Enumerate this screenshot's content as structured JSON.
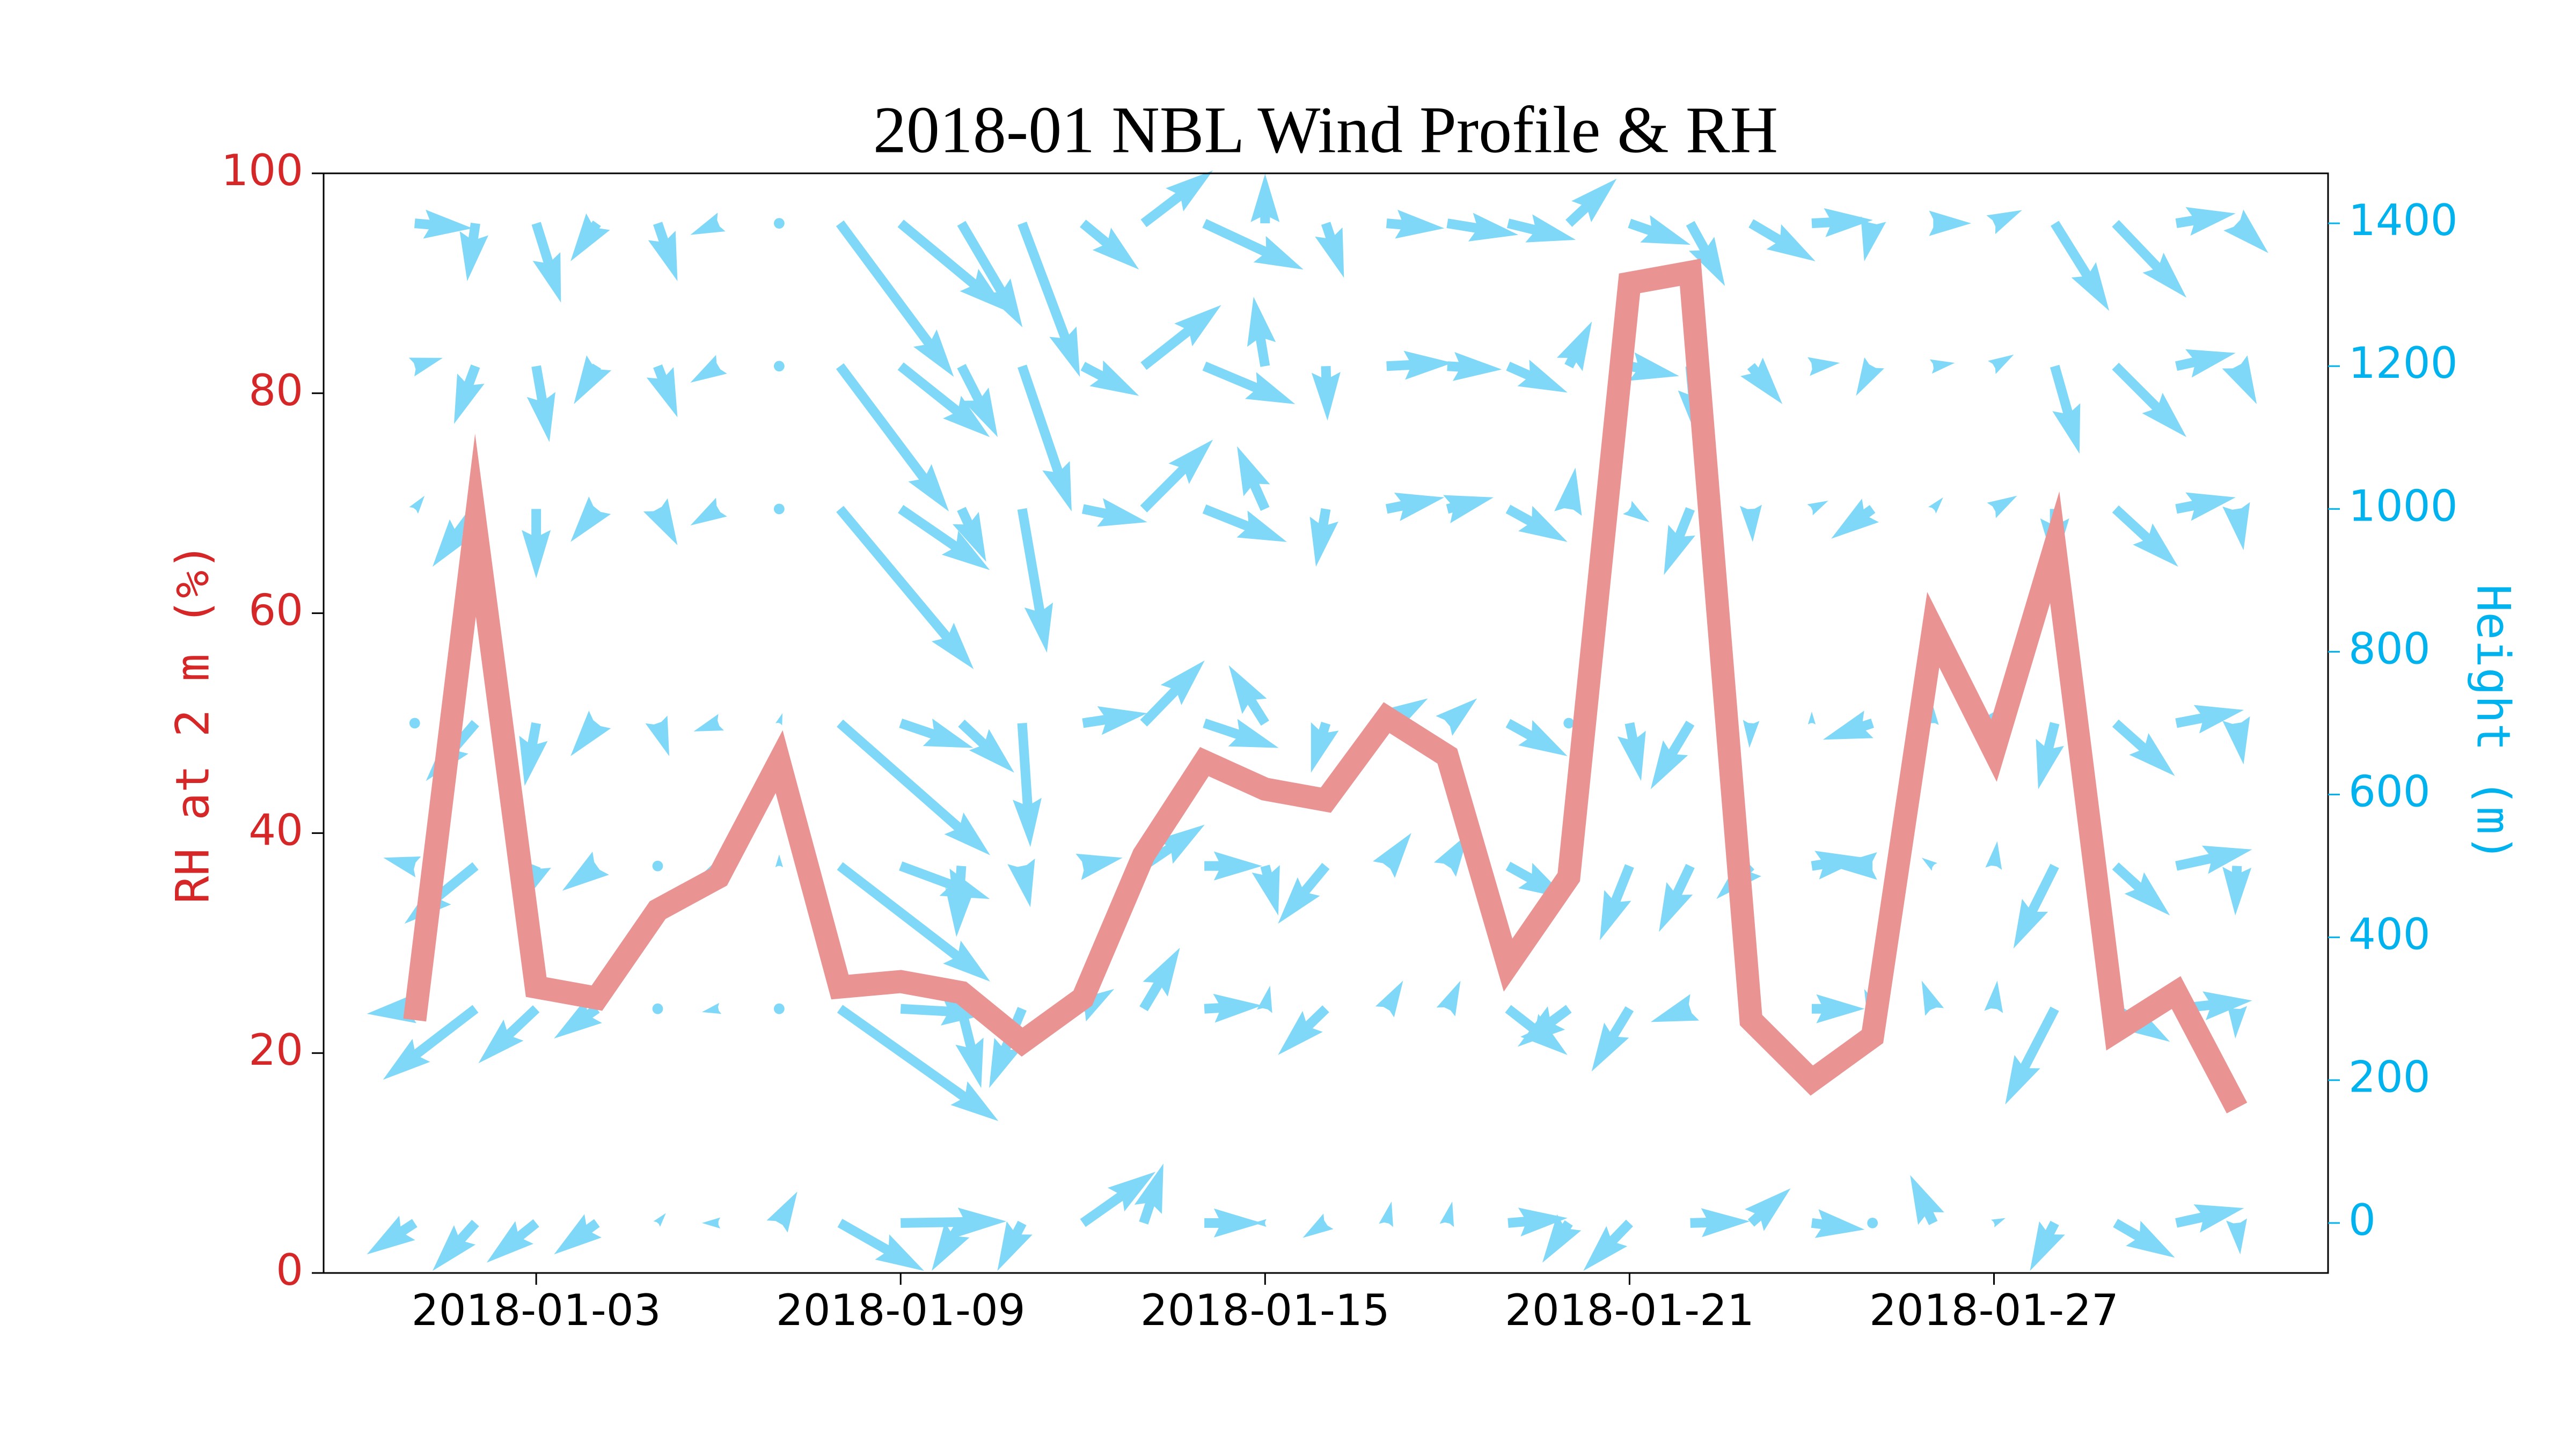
{
  "chart_data": {
    "type": "line",
    "title": "2018-01 NBL Wind Profile & RH",
    "ylabel": "RH at 2 m (%)",
    "y2label": "Height (m)",
    "x": [
      "2018-01-01",
      "2018-01-02",
      "2018-01-03",
      "2018-01-04",
      "2018-01-05",
      "2018-01-06",
      "2018-01-07",
      "2018-01-08",
      "2018-01-09",
      "2018-01-10",
      "2018-01-11",
      "2018-01-12",
      "2018-01-13",
      "2018-01-14",
      "2018-01-15",
      "2018-01-16",
      "2018-01-17",
      "2018-01-18",
      "2018-01-19",
      "2018-01-20",
      "2018-01-21",
      "2018-01-22",
      "2018-01-23",
      "2018-01-24",
      "2018-01-25",
      "2018-01-26",
      "2018-01-27",
      "2018-01-28",
      "2018-01-29",
      "2018-01-30",
      "2018-01-31"
    ],
    "xlim": [
      "2017-12-30T12:00:00Z",
      "2018-02-01T12:00:00Z"
    ],
    "xticks": [
      "2018-01-03",
      "2018-01-09",
      "2018-01-15",
      "2018-01-21",
      "2018-01-27"
    ],
    "ylim": [
      0,
      100
    ],
    "yticks": [
      0,
      20,
      40,
      60,
      80,
      100
    ],
    "y2lim": [
      -70,
      1470
    ],
    "y2ticks": [
      0,
      200,
      400,
      600,
      800,
      1000,
      1200,
      1400
    ],
    "y_axis_color": "#d62728",
    "y2_axis_color": "#00b2ee",
    "series": [
      {
        "color": "#ea9393",
        "values": [
          23,
          68,
          26,
          25,
          33,
          36,
          46.5,
          26,
          26.5,
          25.5,
          21,
          25,
          38,
          46.5,
          44,
          43,
          50.5,
          47,
          28,
          36,
          90,
          91,
          23,
          17.5,
          21.5,
          58.5,
          47.5,
          66,
          22,
          25.5,
          15
        ]
      }
    ],
    "wind": {
      "type": "quiver",
      "axis": "y2",
      "color": "#80d8f8",
      "heights": [
        0,
        300,
        500,
        700,
        1000,
        1200,
        1400
      ],
      "u": [
        [
          -2.9,
          -2.6,
          -3,
          -2.6,
          0.5,
          -1,
          1.1,
          5.1,
          6.4,
          -1.8,
          -1.5,
          4.4,
          1.2,
          3.5,
          -0.7,
          -1.4,
          0.3,
          0.3,
          3.6,
          -1.6,
          -2.8,
          3.6,
          2.4,
          3.2,
          -0.5,
          -1.4,
          0.7,
          -1.5,
          3.6,
          4.1,
          0.2
        ],
        [
          -2.9,
          -5.6,
          -3.5,
          -2.6,
          0.2,
          -1,
          -0.2,
          9.6,
          5.4,
          1.2,
          -2,
          1.9,
          2.2,
          3.5,
          0.3,
          -2.9,
          1,
          0.8,
          3.6,
          -3.1,
          -2.3,
          -2.4,
          0.4,
          3.2,
          -0.5,
          -0.7,
          0.2,
          -3,
          3.3,
          4.6,
          -0.1
        ],
        [
          -1.9,
          -4.3,
          -1,
          -2.1,
          0.2,
          -1,
          0,
          9.1,
          5.4,
          -0.3,
          0.5,
          2.4,
          3.7,
          3.5,
          0.8,
          -2.9,
          1.5,
          1.3,
          3.6,
          -0.3,
          -1.8,
          -1.9,
          -2.1,
          3.2,
          -2.5,
          -0.7,
          0.2,
          -2.5,
          3.3,
          4.6,
          -0.1
        ],
        [
          -0.3,
          -3,
          -0.7,
          -1.6,
          0.7,
          -1.5,
          0.2,
          9.1,
          4.4,
          3.2,
          0.5,
          3.9,
          3.7,
          4.5,
          -2.2,
          -0.9,
          2.5,
          1.8,
          3.6,
          -0.1,
          0.7,
          -2.4,
          -0.1,
          0,
          -3,
          0,
          1.4,
          -1,
          3.6,
          4.1,
          0.4
        ],
        [
          0.6,
          -2.6,
          0,
          -1.6,
          1.2,
          -1.7,
          0,
          8.1,
          5.4,
          1.5,
          1.5,
          3.9,
          4.2,
          5,
          -1.7,
          -0.6,
          3.5,
          2.8,
          3.6,
          0.4,
          1.2,
          -1.6,
          0.1,
          1,
          -2.5,
          0.6,
          1.4,
          0,
          3.8,
          3.6,
          0.4
        ],
        [
          1.7,
          -1.3,
          0.8,
          -1.4,
          1.2,
          -1.7,
          0,
          6.6,
          5.4,
          2.2,
          3,
          3.4,
          4.7,
          5.5,
          -0.7,
          0.1,
          4,
          3.3,
          3.6,
          1.4,
          3,
          0.4,
          1.9,
          1.7,
          -1,
          1.3,
          1.2,
          1.5,
          4.3,
          3.6,
          1.2
        ],
        [
          3.5,
          -0.5,
          1.5,
          -1.6,
          1.2,
          -1.7,
          0,
          6.9,
          6.4,
          3.7,
          3.5,
          3.4,
          4.2,
          6,
          0,
          1.1,
          3.5,
          4.3,
          4.1,
          2.9,
          3.7,
          2.1,
          3.9,
          3.7,
          -0.5,
          2.3,
          1.7,
          3.3,
          4.3,
          3.6,
          1.9
        ]
      ],
      "v": [
        [
          -1.9,
          -2.9,
          -2.4,
          -1.9,
          0.6,
          0,
          1.9,
          -2.9,
          0.1,
          -2.9,
          -2.9,
          3.1,
          3.6,
          0,
          0,
          -0.9,
          1.3,
          1.3,
          0.3,
          -2.4,
          -2.9,
          0.1,
          2.1,
          -0.4,
          0,
          2.9,
          0.3,
          -2.9,
          -2.1,
          0.9,
          -1.9
        ],
        [
          -0.3,
          -4.3,
          -3.3,
          -1.8,
          0.2,
          -0.2,
          0,
          -6.8,
          -0.3,
          -4.8,
          -4.8,
          1.2,
          3.7,
          0.2,
          1.4,
          -2.8,
          1.7,
          1.7,
          -2.8,
          -2.3,
          -3.8,
          -0.8,
          -1.3,
          0,
          1.2,
          1.7,
          1.7,
          -5.8,
          -2,
          0.5,
          -1.8
        ],
        [
          0.5,
          -3.5,
          -2.5,
          -1.5,
          -0.3,
          -0.5,
          0.7,
          -7,
          -2,
          -4.3,
          -2.5,
          0.5,
          2.5,
          0,
          -3,
          -3.5,
          2,
          2,
          -2,
          0.5,
          -4.5,
          -4,
          -2,
          0.5,
          0,
          0.5,
          1.5,
          -5,
          -3,
          1,
          -3
        ],
        [
          0.3,
          -3.5,
          -3.8,
          -2,
          -2,
          -0.5,
          0.6,
          -8,
          -1.5,
          -3,
          -7.5,
          0.6,
          3.8,
          -1.5,
          3.5,
          -3,
          1.5,
          1.5,
          -2,
          0.5,
          -3.5,
          -4,
          -1.5,
          0.7,
          -1,
          1,
          1.5,
          -4,
          -3.2,
          0.8,
          -2.5
        ],
        [
          0.8,
          -3.5,
          -4.2,
          -2,
          -2.2,
          -1,
          0,
          -9.7,
          -3.7,
          -3.2,
          -8.7,
          -0.8,
          4.2,
          -2,
          3.8,
          -3.5,
          0.7,
          0.7,
          -2,
          2.5,
          -0.8,
          -4,
          -2,
          0.5,
          -1.8,
          0.7,
          0.8,
          -3.5,
          -3.5,
          0.7,
          -2.5
        ],
        [
          0.5,
          -3.5,
          -4.6,
          -2.3,
          -3.1,
          -1,
          0,
          -8.8,
          -4.3,
          -4.3,
          -8.8,
          -1.8,
          3.7,
          -2.3,
          4.2,
          -3.3,
          0.2,
          -0.2,
          -1.6,
          2.7,
          -0.6,
          -4.3,
          -2.3,
          0.2,
          -1.8,
          0.2,
          0.7,
          -5.3,
          -4.3,
          0.8,
          -2.3
        ],
        [
          -0.3,
          -3.5,
          -4.8,
          -2.3,
          -3.5,
          -0.7,
          0,
          -9.3,
          -5.3,
          -6.3,
          -9.3,
          -2.8,
          3.2,
          -2.8,
          3,
          -3.3,
          -0.3,
          -0.7,
          -1,
          2.7,
          -1.3,
          -3.8,
          -2.3,
          0.2,
          -2.3,
          0,
          0.8,
          -5.3,
          -4.5,
          0.6,
          -1.8
        ]
      ]
    }
  }
}
